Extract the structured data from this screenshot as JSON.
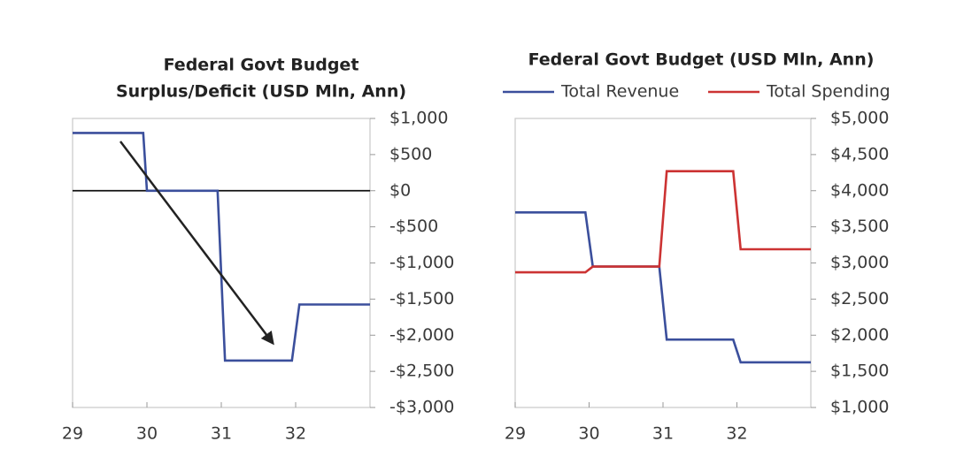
{
  "chart_data": [
    {
      "type": "line",
      "title": [
        "Federal Govt Budget",
        "Surplus/Deficit (USD Mln, Ann)"
      ],
      "x": [
        29,
        29.95,
        30.0,
        30.95,
        31.05,
        31.95,
        32.05,
        33
      ],
      "series": [
        {
          "name": null,
          "color": "#3b4f9c",
          "values": [
            800,
            800,
            0,
            0,
            -2350,
            -2350,
            -1575,
            -1575
          ]
        }
      ],
      "xlim": [
        29,
        33
      ],
      "xticks": [
        29,
        30,
        31,
        32
      ],
      "ylim": [
        -3000,
        1000
      ],
      "yticks": [
        {
          "value": 1000,
          "label": "$1,000"
        },
        {
          "value": 500,
          "label": "$500"
        },
        {
          "value": 0,
          "label": "$0"
        },
        {
          "value": -500,
          "label": "-$500"
        },
        {
          "value": -1000,
          "label": "-$1,000"
        },
        {
          "value": -1500,
          "label": "-$1,500"
        },
        {
          "value": -2000,
          "label": "-$2,000"
        },
        {
          "value": -2500,
          "label": "-$2,500"
        },
        {
          "value": -3000,
          "label": "-$3,000"
        }
      ],
      "zero_line": true
    },
    {
      "type": "line",
      "title": [
        "Federal Govt Budget (USD Mln, Ann)"
      ],
      "x": [
        29,
        29.95,
        30.05,
        30.95,
        31.05,
        31.95,
        32.05,
        33
      ],
      "series": [
        {
          "name": "Total Revenue",
          "color": "#3b4f9c",
          "values": [
            3700,
            3700,
            2950,
            2950,
            1940,
            1940,
            1625,
            1625
          ]
        },
        {
          "name": "Total Spending",
          "color": "#cc3333",
          "values": [
            2870,
            2870,
            2950,
            2950,
            4270,
            4270,
            3190,
            3190
          ]
        }
      ],
      "xlim": [
        29,
        33
      ],
      "xticks": [
        29,
        30,
        31,
        32
      ],
      "ylim": [
        1000,
        5000
      ],
      "yticks": [
        {
          "value": 5000,
          "label": "$5,000"
        },
        {
          "value": 4500,
          "label": "$4,500"
        },
        {
          "value": 4000,
          "label": "$4,000"
        },
        {
          "value": 3500,
          "label": "$3,500"
        },
        {
          "value": 3000,
          "label": "$3,000"
        },
        {
          "value": 2500,
          "label": "$2,500"
        },
        {
          "value": 2000,
          "label": "$2,000"
        },
        {
          "value": 1500,
          "label": "$1,500"
        },
        {
          "value": 1000,
          "label": "$1,000"
        }
      ],
      "legend": "top"
    }
  ]
}
